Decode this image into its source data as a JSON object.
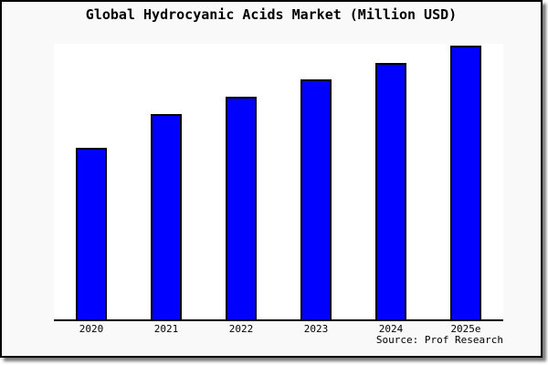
{
  "chart_data": {
    "type": "bar",
    "title": "Global Hydrocyanic Acids Market (Million USD)",
    "categories": [
      "2020",
      "2021",
      "2022",
      "2023",
      "2024",
      "2025e"
    ],
    "values": [
      188,
      225,
      244,
      263,
      281,
      300
    ],
    "xlabel": "",
    "ylabel": "",
    "ylim": [
      0,
      302
    ],
    "grid": false,
    "legend": false,
    "y_axis_ticks_visible": false,
    "source": "Source: Prof Research"
  },
  "colors": {
    "figure_background": "#f9f9f9",
    "plot_background": "#ffffff",
    "bar_fill": "#0000ff",
    "bar_border": "#000000",
    "frame_border": "#000000",
    "axis_line": "#000000",
    "text": "#000000"
  }
}
